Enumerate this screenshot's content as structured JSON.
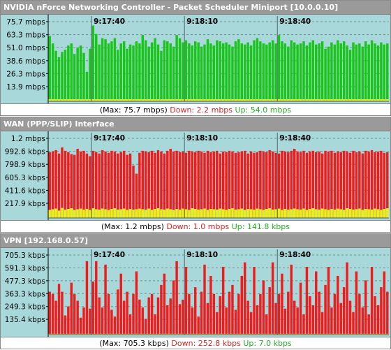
{
  "colors": {
    "plot_bg": "#a9d8db",
    "axis_bg": "#a9d8db",
    "grid": "#6c8f92",
    "down": "#ee1c1c",
    "up": "#19c519",
    "up_small": "#f0f000",
    "title_bg": "#9a9a9a"
  },
  "panels": [
    {
      "title": "NVIDIA nForce Networking Controller - Packet Scheduler Miniport [10.0.0.10]",
      "footer": {
        "max": "(Max: 75.7 mbps)",
        "down": "Down: 2.2 mbps",
        "up": "Up: 54.0 mbps"
      },
      "chart_data": {
        "type": "bar",
        "ylim": [
          0,
          75.7
        ],
        "yticks": [
          {
            "label": "75.7 mbps",
            "value": 75.7
          },
          {
            "label": "63.3 mbps",
            "value": 63.3
          },
          {
            "label": "51.0 mbps",
            "value": 51.0
          },
          {
            "label": "38.6 mbps",
            "value": 38.6
          },
          {
            "label": "26.3 mbps",
            "value": 26.3
          },
          {
            "label": "13.9 mbps",
            "value": 13.9
          }
        ],
        "time_markers": [
          {
            "label": "9:17:40",
            "index": 14
          },
          {
            "label": "9:18:10",
            "index": 44
          },
          {
            "label": "9:18:40",
            "index": 74
          }
        ],
        "series": [
          {
            "name": "Up",
            "color_key": "up",
            "values": [
              62,
              55,
              48,
              42,
              47,
              49,
              53,
              55,
              45,
              51,
              53,
              46,
              28,
              50,
              72,
              64,
              54,
              60,
              59,
              55,
              57,
              60,
              49,
              55,
              57,
              50,
              54,
              53,
              57,
              55,
              63,
              58,
              52,
              56,
              60,
              54,
              48,
              58,
              57,
              55,
              52,
              63,
              60,
              56,
              58,
              55,
              53,
              57,
              56,
              52,
              54,
              59,
              55,
              53,
              58,
              57,
              55,
              56,
              54,
              52,
              57,
              59,
              55,
              54,
              56,
              53,
              58,
              60,
              57,
              55,
              54,
              56,
              58,
              55,
              63,
              57,
              55,
              52,
              58,
              56,
              54,
              55,
              57,
              53,
              56,
              58,
              54,
              55,
              57,
              50,
              52,
              56,
              54,
              58,
              55,
              57,
              53,
              49,
              56,
              54,
              55,
              52,
              57,
              54,
              58,
              55,
              53,
              56,
              54,
              55
            ]
          },
          {
            "name": "Down",
            "color_key": "up_small",
            "values": [
              2,
              2,
              2,
              2,
              2,
              2,
              2,
              2,
              2,
              2,
              2,
              2,
              2,
              2,
              2,
              2,
              2,
              2,
              2,
              2,
              2,
              2,
              2,
              2,
              2,
              2,
              2,
              2,
              2,
              2,
              2,
              2,
              2,
              2,
              2,
              2,
              2,
              2,
              2,
              2,
              2,
              2,
              2,
              2,
              2,
              2,
              2,
              2,
              2,
              2,
              2,
              2,
              2,
              2,
              2,
              2,
              2,
              2,
              2,
              2,
              2,
              2,
              2,
              2,
              2,
              2,
              2,
              2,
              2,
              2,
              2,
              2,
              2,
              2,
              2,
              2,
              2,
              2,
              2,
              2,
              2,
              2,
              2,
              2,
              2,
              2,
              2,
              2,
              2,
              2,
              2,
              2,
              2,
              2,
              2,
              2,
              2,
              2,
              2,
              2,
              2,
              2,
              2,
              2,
              2,
              2,
              2,
              2,
              2,
              2
            ]
          }
        ]
      }
    },
    {
      "title": "WAN (PPP/SLIP) Interface",
      "footer": {
        "max": "(Max: 1.2 mbps)",
        "down": "Down: 1.0 mbps",
        "up": "Up: 141.8 kbps"
      },
      "chart_data": {
        "type": "bar",
        "ylim": [
          0,
          1186
        ],
        "yticks": [
          {
            "label": "1.2 mbps",
            "value": 1186
          },
          {
            "label": "992.6 kbps",
            "value": 992.6
          },
          {
            "label": "798.9 kbps",
            "value": 798.9
          },
          {
            "label": "605.3 kbps",
            "value": 605.3
          },
          {
            "label": "411.6 kbps",
            "value": 411.6
          },
          {
            "label": "217.9 kbps",
            "value": 217.9
          }
        ],
        "time_markers": [
          {
            "label": "9:17:40",
            "index": 14
          },
          {
            "label": "9:18:10",
            "index": 44
          },
          {
            "label": "9:18:40",
            "index": 74
          }
        ],
        "series": [
          {
            "name": "Down",
            "color_key": "down",
            "values": [
              980,
              990,
              1010,
              960,
              1050,
              1000,
              980,
              950,
              940,
              1030,
              990,
              1000,
              960,
              920,
              1000,
              980,
              960,
              1010,
              990,
              970,
              1000,
              990,
              960,
              980,
              1000,
              940,
              960,
              780,
              660,
              970,
              1000,
              990,
              980,
              1000,
              970,
              1010,
              990,
              960,
              1000,
              1030,
              990,
              1000,
              980,
              990,
              970,
              1000,
              990,
              980,
              1000,
              990,
              970,
              1000,
              980,
              990,
              1000,
              960,
              990,
              980,
              1000,
              990,
              970,
              980,
              990,
              1000,
              960,
              990,
              970,
              980,
              1000,
              990,
              980,
              1010,
              990,
              970,
              960,
              1000,
              990,
              980,
              1000,
              1030,
              990,
              980,
              1000,
              970,
              990,
              1000,
              980,
              990,
              960,
              1000,
              990,
              1000,
              970,
              990,
              980,
              1000,
              990,
              970,
              1000,
              980,
              990,
              960,
              1000,
              990,
              1010,
              980,
              990,
              1000,
              970,
              980
            ]
          },
          {
            "name": "Up",
            "color_key": "up_small",
            "values": [
              120,
              130,
              140,
              110,
              150,
              125,
              135,
              145,
              120,
              130,
              140,
              125,
              135,
              120,
              145,
              130,
              125,
              140,
              130,
              120,
              135,
              145,
              125,
              130,
              140,
              120,
              135,
              125,
              130,
              140,
              130,
              125,
              140,
              120,
              135,
              145,
              130,
              125,
              140,
              130,
              120,
              135,
              125,
              140,
              130,
              120,
              145,
              135,
              125,
              130,
              140,
              120,
              135,
              130,
              125,
              140,
              130,
              120,
              135,
              145,
              125,
              130,
              140,
              120,
              135,
              130,
              125,
              140,
              130,
              120,
              135,
              145,
              125,
              130,
              140,
              120,
              135,
              125,
              130,
              140,
              130,
              125,
              140,
              120,
              135,
              145,
              130,
              125,
              140,
              130,
              120,
              135,
              125,
              140,
              130,
              120,
              145,
              135,
              125,
              130,
              140,
              120,
              135,
              130,
              125,
              140,
              130,
              120,
              135,
              145
            ]
          }
        ]
      }
    },
    {
      "title": "VPN [192.168.0.57]",
      "footer": {
        "max": "(Max: 705.3 kbps)",
        "down": "Down: 252.8 kbps",
        "up": "Up: 7.0 kbps"
      },
      "chart_data": {
        "type": "bar",
        "ylim": [
          0,
          705.3
        ],
        "yticks": [
          {
            "label": "705.3 kbps",
            "value": 705.3
          },
          {
            "label": "591.3 kbps",
            "value": 591.3
          },
          {
            "label": "477.3 kbps",
            "value": 477.3
          },
          {
            "label": "363.3 kbps",
            "value": 363.3
          },
          {
            "label": "249.3 kbps",
            "value": 249.3
          },
          {
            "label": "135.4 kbps",
            "value": 135.4
          }
        ],
        "time_markers": [
          {
            "label": "9:17:40",
            "index": 14
          },
          {
            "label": "9:18:10",
            "index": 44
          },
          {
            "label": "9:18:40",
            "index": 74
          }
        ],
        "series": [
          {
            "name": "Down",
            "color_key": "down",
            "values": [
              380,
              360,
              300,
              450,
              380,
              170,
              250,
              460,
              360,
              300,
              150,
              240,
              650,
              230,
              470,
              650,
              330,
              240,
              620,
              360,
              220,
              160,
              400,
              540,
              300,
              380,
              180,
              360,
              560,
              310,
              240,
              140,
              330,
              360,
              180,
              330,
              440,
              540,
              260,
              320,
              480,
              650,
              270,
              310,
              600,
              360,
              240,
              420,
              160,
              380,
              620,
              280,
              520,
              360,
              200,
              340,
              600,
              240,
              380,
              440,
              220,
              360,
              520,
              640,
              300,
              200,
              600,
              260,
              360,
              480,
              180,
              420,
              640,
              280,
              360,
              540,
              230,
              380,
              620,
              300,
              240,
              460,
              180,
              600,
              340,
              260,
              560,
              380,
              200,
              440,
              600,
              240,
              360,
              520,
              280,
              420,
              640,
              300,
              200,
              560,
              360,
              240,
              480,
              180,
              600,
              340,
              260,
              420,
              560,
              380
            ]
          },
          {
            "name": "Up",
            "color_key": "up_small",
            "values": [
              7,
              7,
              7,
              7,
              7,
              7,
              7,
              7,
              7,
              7,
              7,
              7,
              7,
              7,
              7,
              7,
              7,
              7,
              7,
              7,
              7,
              7,
              7,
              7,
              7,
              7,
              7,
              7,
              7,
              7,
              7,
              7,
              7,
              7,
              7,
              7,
              7,
              7,
              7,
              7,
              7,
              7,
              7,
              7,
              7,
              7,
              7,
              7,
              7,
              7,
              7,
              7,
              7,
              7,
              7,
              7,
              7,
              7,
              7,
              7,
              7,
              7,
              7,
              7,
              7,
              7,
              7,
              7,
              7,
              7,
              7,
              7,
              7,
              7,
              7,
              7,
              7,
              7,
              7,
              7,
              7,
              7,
              7,
              7,
              7,
              7,
              7,
              7,
              7,
              7,
              7,
              7,
              7,
              7,
              7,
              7,
              7,
              7,
              7,
              7,
              7,
              7,
              7,
              7,
              7,
              7,
              7,
              7,
              7,
              7
            ]
          }
        ]
      }
    }
  ]
}
